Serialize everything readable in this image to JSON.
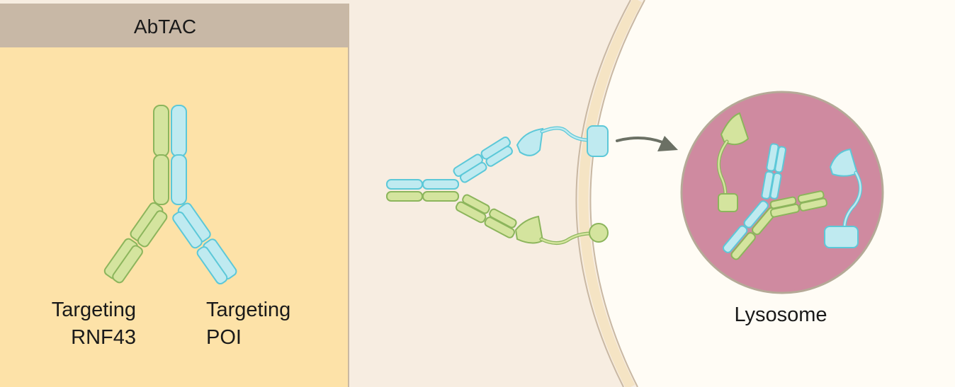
{
  "panel": {
    "title": "AbTAC"
  },
  "labels": {
    "left_arm_line1": "Targeting",
    "left_arm_line2": "RNF43",
    "right_arm_line1": "Targeting",
    "right_arm_line2": "POI",
    "lysosome": "Lysosome"
  },
  "colors": {
    "panel_bg": "#fde2a8",
    "panel_header": "#c8b8a6",
    "extracellular_bg": "#f7ede1",
    "cell_interior": "#fffcf5",
    "membrane": "#f5e4c4",
    "membrane_line": "#c9b8a3",
    "green_chain": "#d4e49e",
    "green_stroke": "#8cb55c",
    "cyan_chain": "#bfeaf0",
    "cyan_stroke": "#5cc8d8",
    "lysosome_fill": "#cf8aa0",
    "lysosome_stroke": "#b5a997",
    "arrow": "#6b7064"
  },
  "icons": {
    "antibody": "y-shaped-antibody-icon",
    "receptor_poi": "cyan-receptor-icon",
    "receptor_rnf43": "green-receptor-icon",
    "arrow": "curved-arrow-icon",
    "lysosome": "lysosome-circle-icon"
  }
}
